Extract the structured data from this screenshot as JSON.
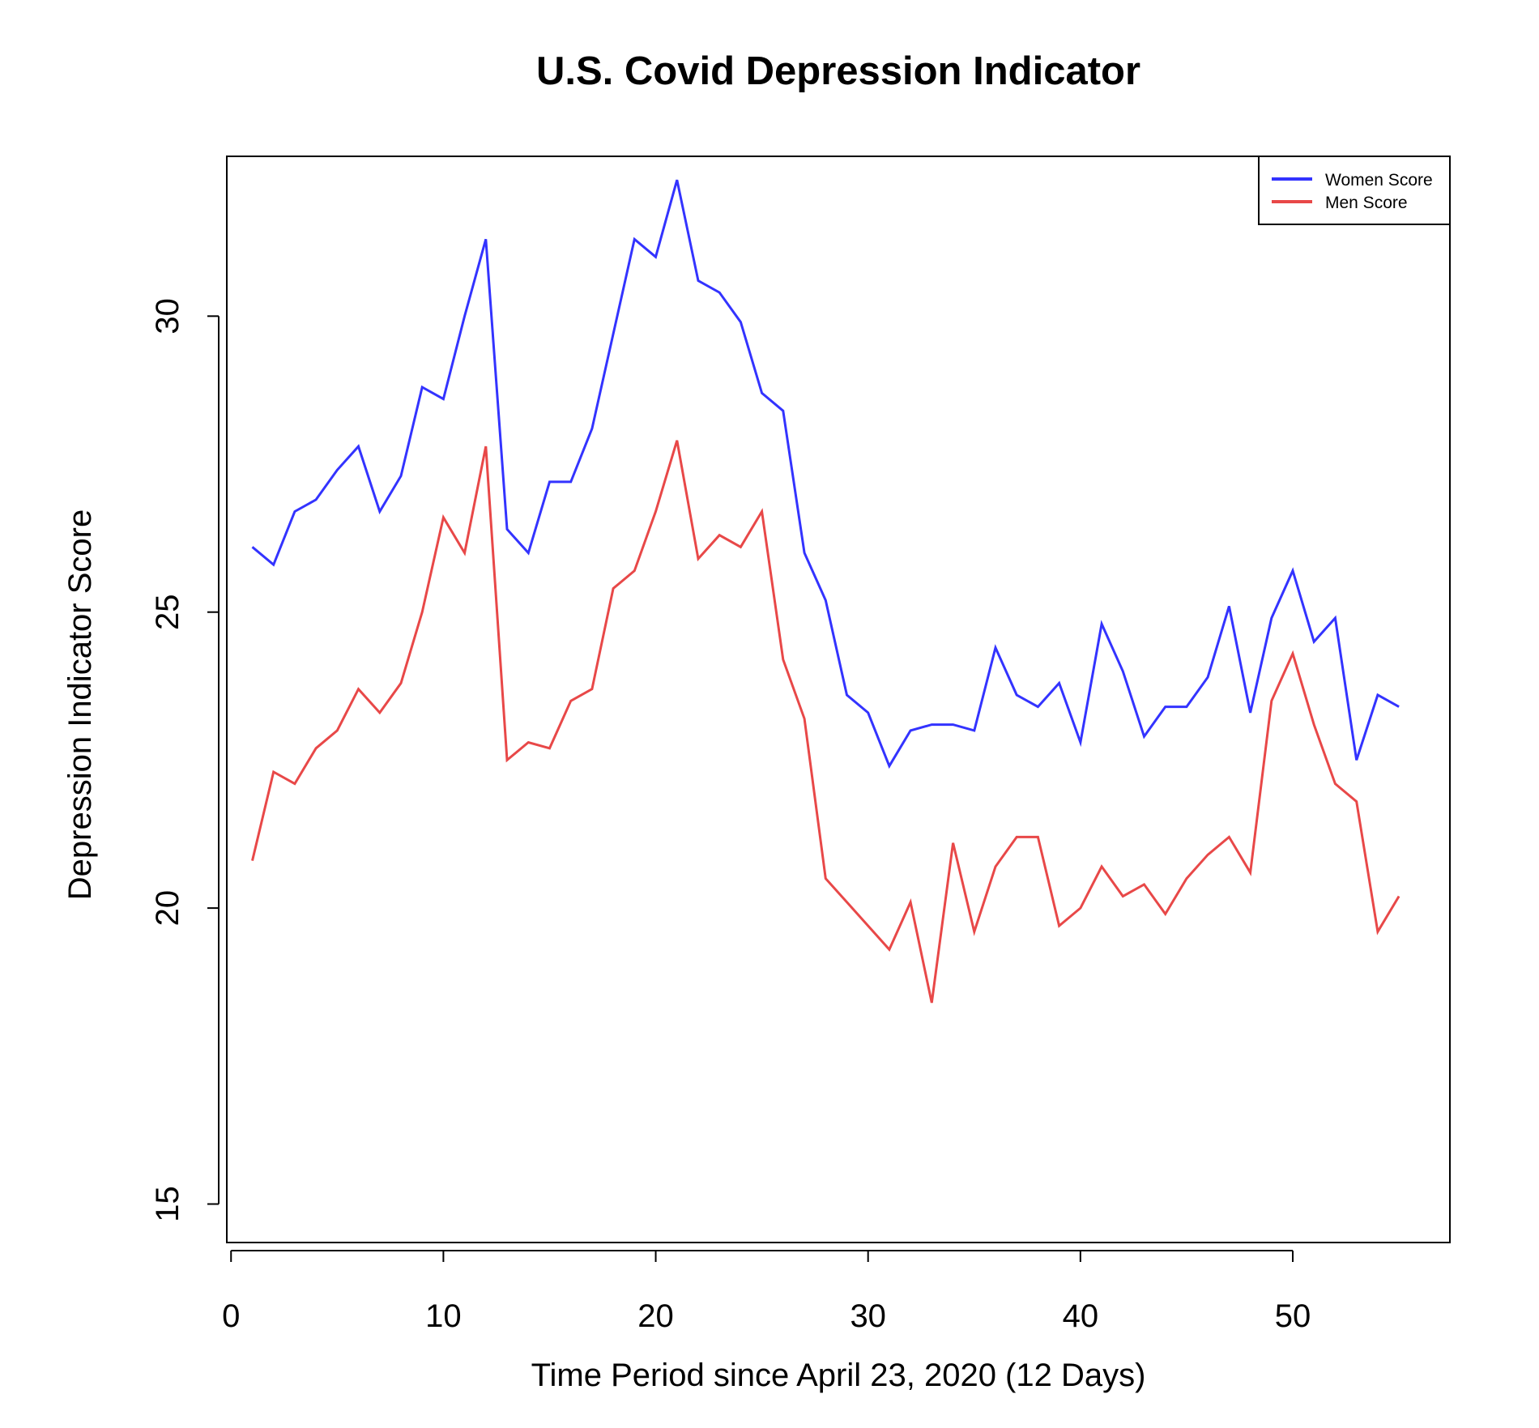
{
  "chart_data": {
    "type": "line",
    "title": "U.S. Covid Depression Indicator",
    "xlabel": "Time Period since April 23, 2020 (12 Days)",
    "ylabel": "Depression Indicator Score",
    "xlim": [
      -0.2,
      57.4
    ],
    "ylim": [
      14.35,
      32.7
    ],
    "xticks": [
      0,
      10,
      20,
      30,
      40,
      50
    ],
    "yticks": [
      15,
      20,
      25,
      30
    ],
    "grid": false,
    "legend_position": "top-right",
    "x": [
      1,
      2,
      3,
      4,
      5,
      6,
      7,
      8,
      9,
      10,
      11,
      12,
      13,
      14,
      15,
      16,
      17,
      18,
      19,
      20,
      21,
      22,
      23,
      24,
      25,
      26,
      27,
      28,
      29,
      30,
      31,
      32,
      33,
      34,
      35,
      36,
      37,
      38,
      39,
      40,
      41,
      42,
      43,
      44,
      45,
      46,
      47,
      48,
      49,
      50,
      51,
      52,
      53,
      54,
      55
    ],
    "series": [
      {
        "name": "Women Score",
        "color": "#3333ff",
        "values": [
          26.1,
          25.8,
          26.7,
          26.9,
          27.4,
          27.8,
          26.7,
          27.3,
          28.8,
          28.6,
          30.0,
          31.3,
          26.4,
          26.0,
          27.2,
          27.2,
          28.1,
          29.7,
          31.3,
          31.0,
          32.3,
          30.6,
          30.4,
          29.9,
          28.7,
          28.4,
          26.0,
          25.2,
          23.6,
          23.3,
          22.4,
          23.0,
          23.1,
          23.1,
          23.0,
          24.4,
          23.6,
          23.4,
          23.8,
          22.8,
          24.8,
          24.0,
          22.9,
          23.4,
          23.4,
          23.9,
          25.1,
          23.3,
          24.9,
          25.7,
          24.5,
          24.9,
          22.5,
          23.6,
          23.4
        ]
      },
      {
        "name": "Men Score",
        "color": "#e84848",
        "values": [
          20.8,
          22.3,
          22.1,
          22.7,
          23.0,
          23.7,
          23.3,
          23.8,
          25.0,
          26.6,
          26.0,
          27.8,
          22.5,
          22.8,
          22.7,
          23.5,
          23.7,
          25.4,
          25.7,
          26.7,
          27.9,
          25.9,
          26.3,
          26.1,
          26.7,
          24.2,
          23.2,
          20.5,
          20.1,
          19.7,
          19.3,
          20.1,
          18.4,
          21.1,
          19.6,
          20.7,
          21.2,
          21.2,
          19.7,
          20.0,
          20.7,
          20.2,
          20.4,
          19.9,
          20.5,
          20.9,
          21.2,
          20.6,
          23.5,
          24.3,
          23.1,
          22.1,
          21.8,
          19.6,
          20.2
        ]
      }
    ]
  }
}
